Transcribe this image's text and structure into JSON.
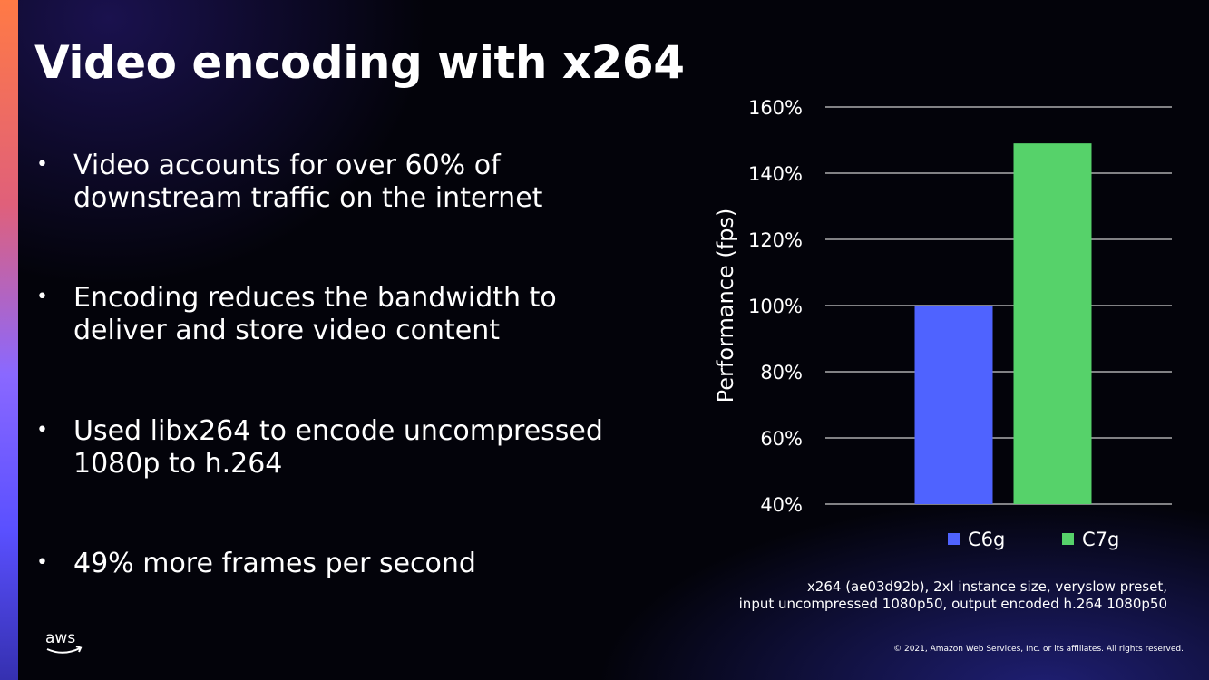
{
  "slide": {
    "title": "Video encoding with x264",
    "bullets": [
      "Video accounts for over 60% of downstream traffic on the internet",
      "Encoding reduces the bandwidth to deliver and store video content",
      "Used libx264 to encode uncompressed 1080p to h.264",
      "49% more frames per second"
    ],
    "footnote": [
      "x264 (ae03d92b), 2xl instance size, veryslow preset,",
      "input uncompressed 1080p50, output encoded h.264 1080p50"
    ],
    "logo_text": "aws",
    "copyright": "© 2021, Amazon Web Services, Inc. or its affiliates. All rights reserved."
  },
  "colors": {
    "accent_bar": "#ff7a45",
    "grid": "#ffffff"
  },
  "chart_data": {
    "type": "bar",
    "categories": [
      ""
    ],
    "series": [
      {
        "name": "C6g",
        "values": [
          100
        ],
        "color": "#4f63ff"
      },
      {
        "name": "C7g",
        "values": [
          149
        ],
        "color": "#56d26a"
      }
    ],
    "ylabel": "Performance (fps)",
    "ylim": [
      40,
      160
    ],
    "yticks": [
      40,
      60,
      80,
      100,
      120,
      140,
      160
    ],
    "ytick_labels": [
      "40%",
      "60%",
      "80%",
      "100%",
      "120%",
      "140%",
      "160%"
    ],
    "grid": true,
    "legend": "bottom"
  }
}
